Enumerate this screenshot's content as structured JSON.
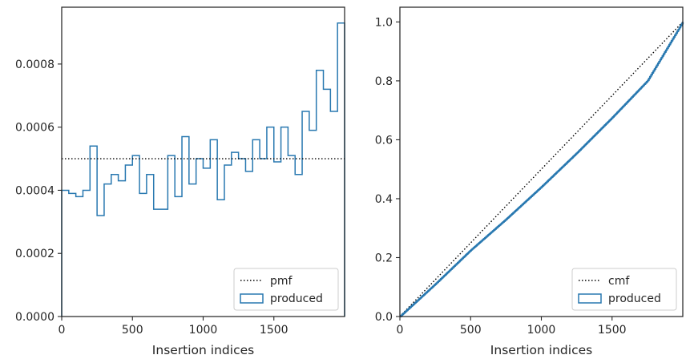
{
  "colors": {
    "produced": "#2878b0",
    "reference": "#000000",
    "spine": "#262626",
    "legend_border": "#cccccc"
  },
  "chart_data": [
    {
      "type": "histogram-step",
      "title": "",
      "xlabel": "Insertion indices",
      "ylabel": "",
      "xlim": [
        0,
        2000
      ],
      "ylim": [
        0,
        0.00098
      ],
      "xticks": [
        0,
        500,
        1000,
        1500
      ],
      "xtick_labels": [
        "0",
        "500",
        "1000",
        "1500"
      ],
      "yticks": [
        0,
        0.0002,
        0.0004,
        0.0006,
        0.0008
      ],
      "ytick_labels": [
        "0.0000",
        "0.0002",
        "0.0004",
        "0.0006",
        "0.0008"
      ],
      "grid": false,
      "legend_position": "lower right",
      "bin_edges": [
        0,
        50,
        100,
        150,
        200,
        250,
        300,
        350,
        400,
        450,
        500,
        550,
        600,
        650,
        700,
        750,
        800,
        850,
        900,
        950,
        1000,
        1050,
        1100,
        1150,
        1200,
        1250,
        1300,
        1350,
        1400,
        1450,
        1500,
        1550,
        1600,
        1650,
        1700,
        1750,
        1800,
        1850,
        1900,
        1950,
        2000
      ],
      "series": [
        {
          "name": "produced",
          "style": "step",
          "values": [
            0.0004,
            0.00039,
            0.00038,
            0.0004,
            0.00054,
            0.00032,
            0.00042,
            0.00045,
            0.00043,
            0.00048,
            0.00051,
            0.00039,
            0.00045,
            0.00034,
            0.00034,
            0.00051,
            0.00038,
            0.00057,
            0.00042,
            0.0005,
            0.00047,
            0.00056,
            0.00037,
            0.00048,
            0.00052,
            0.0005,
            0.00046,
            0.00056,
            0.0005,
            0.0006,
            0.00049,
            0.0006,
            0.00051,
            0.00045,
            0.00065,
            0.00059,
            0.00078,
            0.00072,
            0.00065,
            0.00093
          ]
        }
      ],
      "reference": {
        "name": "pmf",
        "style": "dotted",
        "value": 0.0005
      }
    },
    {
      "type": "ecdf-step",
      "title": "",
      "xlabel": "Insertion indices",
      "ylabel": "",
      "xlim": [
        0,
        2000
      ],
      "ylim": [
        0,
        1.05
      ],
      "xticks": [
        0,
        500,
        1000,
        1500
      ],
      "xtick_labels": [
        "0",
        "500",
        "1000",
        "1500"
      ],
      "yticks": [
        0,
        0.2,
        0.4,
        0.6,
        0.8,
        1.0
      ],
      "ytick_labels": [
        "0.0",
        "0.2",
        "0.4",
        "0.6",
        "0.8",
        "1.0"
      ],
      "grid": false,
      "legend_position": "lower right",
      "series": [
        {
          "name": "produced",
          "style": "step",
          "x": [
            0,
            250,
            500,
            750,
            1000,
            1250,
            1500,
            1750,
            2000
          ],
          "y": [
            0,
            0.11,
            0.225,
            0.33,
            0.44,
            0.555,
            0.675,
            0.8,
            1.0
          ]
        }
      ],
      "reference": {
        "name": "cmf",
        "style": "dotted",
        "x": [
          0,
          2000
        ],
        "y": [
          0,
          1.0
        ]
      }
    }
  ]
}
